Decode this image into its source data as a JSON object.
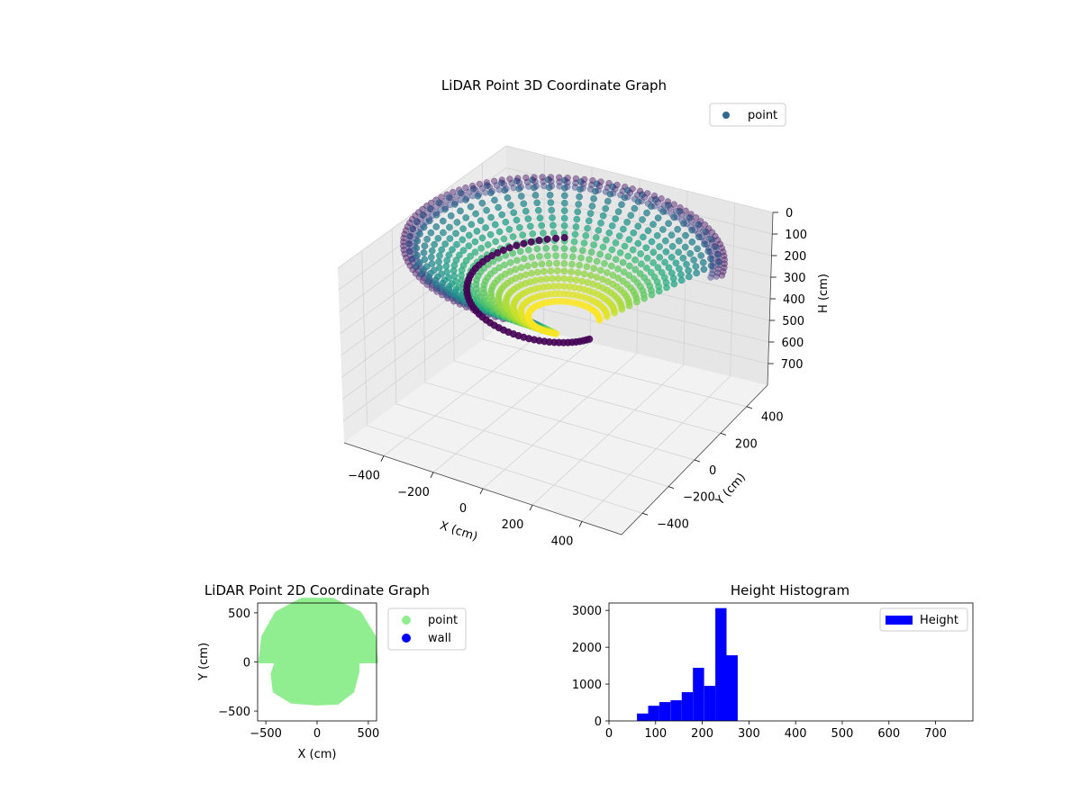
{
  "chart_data": [
    {
      "type": "scatter",
      "projection": "3d",
      "title": "LiDAR Point 3D Coordinate Graph",
      "xlabel": "X (cm)",
      "ylabel": "Y (cm)",
      "zlabel": "H (cm)",
      "xlim": [
        -560,
        560
      ],
      "ylim": [
        -560,
        560
      ],
      "zlim": [
        800,
        0
      ],
      "x_ticks": [
        -400,
        -200,
        0,
        200,
        400
      ],
      "y_ticks": [
        -400,
        -200,
        0,
        200,
        400
      ],
      "z_ticks": [
        0,
        100,
        200,
        300,
        400,
        500,
        600,
        700
      ],
      "x_tick_labels": [
        "−400",
        "−200",
        "0",
        "200",
        "400"
      ],
      "y_tick_labels": [
        "−400",
        "−200",
        "0",
        "200",
        "400"
      ],
      "z_tick_labels": [
        "0",
        "100",
        "200",
        "300",
        "400",
        "500",
        "600",
        "700"
      ],
      "grid": true,
      "legend": {
        "placement": "upper-right",
        "entries": [
          {
            "name": "point",
            "color": "#31688e"
          }
        ]
      },
      "colormap": "viridis",
      "colors": {
        "point_legend": "#31688e",
        "pane": "#f2f2f2",
        "grid": "#d0d0d0"
      },
      "structure": {
        "outer_ring": {
          "radius": 560,
          "height": 0,
          "arc_degrees": [
            20,
            280
          ]
        },
        "dome_surface": {
          "radius_range": [
            120,
            540
          ],
          "height_range": [
            0,
            300
          ]
        },
        "wall_band": {
          "height_range": [
            200,
            300
          ],
          "color": "#440154"
        }
      }
    },
    {
      "type": "scatter",
      "title": "LiDAR Point 2D Coordinate Graph",
      "xlabel": "X (cm)",
      "ylabel": "Y (cm)",
      "xlim": [
        -580,
        580
      ],
      "ylim": [
        -600,
        600
      ],
      "x_ticks": [
        -500,
        0,
        500
      ],
      "y_ticks": [
        -500,
        0,
        500
      ],
      "x_tick_labels": [
        "−500",
        "0",
        "500"
      ],
      "y_tick_labels": [
        "−500",
        "0",
        "500"
      ],
      "series": [
        {
          "name": "point",
          "color": "#90ee90",
          "region": "filled top-view footprint"
        },
        {
          "name": "wall",
          "color": "#0000ff"
        }
      ],
      "legend": {
        "placement": "outside-right"
      }
    },
    {
      "type": "bar",
      "title": "Height Histogram",
      "xlim": [
        0,
        780
      ],
      "ylim": [
        0,
        3200
      ],
      "x_ticks": [
        0,
        100,
        200,
        300,
        400,
        500,
        600,
        700
      ],
      "y_ticks": [
        0,
        1000,
        2000,
        3000
      ],
      "bin_width": 24,
      "bins": [
        {
          "start": 60,
          "count": 200
        },
        {
          "start": 84,
          "count": 410
        },
        {
          "start": 108,
          "count": 510
        },
        {
          "start": 132,
          "count": 560
        },
        {
          "start": 156,
          "count": 780
        },
        {
          "start": 180,
          "count": 1440
        },
        {
          "start": 204,
          "count": 950
        },
        {
          "start": 228,
          "count": 3060
        },
        {
          "start": 252,
          "count": 1780
        }
      ],
      "series": [
        {
          "name": "Height",
          "color": "#0000ff"
        }
      ],
      "legend": {
        "placement": "upper-right"
      }
    }
  ]
}
